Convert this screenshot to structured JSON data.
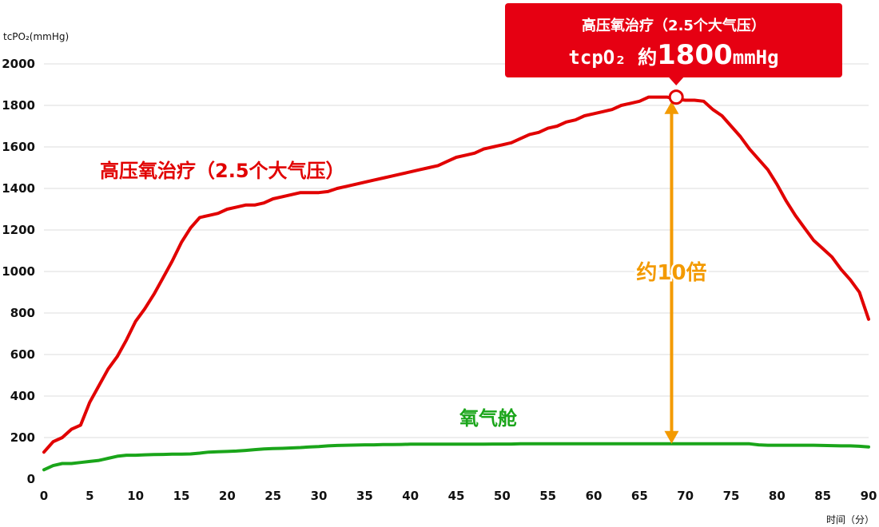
{
  "chart_data": {
    "type": "line",
    "ylabel": "tcPO₂(mmHg)",
    "xlabel": "时间（分）",
    "xlim": [
      0,
      90
    ],
    "ylim": [
      0,
      2000
    ],
    "x_ticks": [
      "0",
      "5",
      "10",
      "15",
      "20",
      "25",
      "30",
      "35",
      "40",
      "45",
      "50",
      "55",
      "60",
      "65",
      "70",
      "75",
      "80",
      "85",
      "90"
    ],
    "y_ticks": [
      "0",
      "200",
      "400",
      "600",
      "800",
      "1000",
      "1200",
      "1400",
      "1600",
      "1800",
      "2000"
    ],
    "grid": "horizontal",
    "series": [
      {
        "name": "高压氧治疗（2.5个大气压）",
        "color": "#e10000",
        "x": [
          0,
          1,
          2,
          3,
          4,
          5,
          6,
          7,
          8,
          9,
          10,
          11,
          12,
          13,
          14,
          15,
          16,
          17,
          18,
          19,
          20,
          21,
          22,
          23,
          24,
          25,
          26,
          27,
          28,
          29,
          30,
          31,
          32,
          33,
          34,
          35,
          36,
          37,
          38,
          39,
          40,
          41,
          42,
          43,
          44,
          45,
          46,
          47,
          48,
          49,
          50,
          51,
          52,
          53,
          54,
          55,
          56,
          57,
          58,
          59,
          60,
          61,
          62,
          63,
          64,
          65,
          66,
          67,
          68,
          69,
          70,
          71,
          72,
          73,
          74,
          75,
          76,
          77,
          78,
          79,
          80,
          81,
          82,
          83,
          84,
          85,
          86,
          87,
          88,
          89,
          90
        ],
        "values": [
          130,
          180,
          200,
          240,
          260,
          370,
          450,
          530,
          590,
          670,
          760,
          820,
          890,
          970,
          1050,
          1140,
          1210,
          1260,
          1270,
          1280,
          1300,
          1310,
          1320,
          1320,
          1330,
          1350,
          1360,
          1370,
          1380,
          1380,
          1380,
          1385,
          1400,
          1410,
          1420,
          1430,
          1440,
          1450,
          1460,
          1470,
          1480,
          1490,
          1500,
          1510,
          1530,
          1550,
          1560,
          1570,
          1590,
          1600,
          1610,
          1620,
          1640,
          1660,
          1670,
          1690,
          1700,
          1720,
          1730,
          1750,
          1760,
          1770,
          1780,
          1800,
          1810,
          1820,
          1840,
          1840,
          1840,
          1830,
          1825,
          1825,
          1820,
          1780,
          1750,
          1700,
          1650,
          1590,
          1540,
          1490,
          1420,
          1340,
          1270,
          1210,
          1150,
          1110,
          1070,
          1010,
          960,
          900,
          770
        ]
      },
      {
        "name": "氧气舱",
        "color": "#1aa51a",
        "x": [
          0,
          1,
          2,
          3,
          4,
          5,
          6,
          7,
          8,
          9,
          10,
          11,
          12,
          13,
          14,
          15,
          16,
          17,
          18,
          19,
          20,
          21,
          22,
          23,
          24,
          25,
          26,
          27,
          28,
          29,
          30,
          31,
          32,
          33,
          34,
          35,
          36,
          37,
          38,
          39,
          40,
          41,
          42,
          43,
          44,
          45,
          46,
          47,
          48,
          49,
          50,
          51,
          52,
          53,
          54,
          55,
          56,
          57,
          58,
          59,
          60,
          61,
          62,
          63,
          64,
          65,
          66,
          67,
          68,
          69,
          70,
          71,
          72,
          73,
          74,
          75,
          76,
          77,
          78,
          79,
          80,
          81,
          82,
          83,
          84,
          85,
          86,
          87,
          88,
          89,
          90
        ],
        "values": [
          45,
          65,
          75,
          75,
          80,
          85,
          90,
          100,
          110,
          115,
          115,
          117,
          118,
          119,
          120,
          120,
          121,
          125,
          130,
          132,
          133,
          135,
          138,
          142,
          145,
          147,
          148,
          150,
          152,
          155,
          157,
          160,
          162,
          163,
          164,
          165,
          165,
          166,
          166,
          167,
          168,
          168,
          168,
          168,
          168,
          168,
          168,
          168,
          168,
          169,
          169,
          169,
          170,
          170,
          170,
          170,
          170,
          170,
          170,
          170,
          170,
          170,
          170,
          170,
          170,
          170,
          170,
          170,
          170,
          170,
          170,
          170,
          170,
          170,
          170,
          170,
          170,
          170,
          165,
          163,
          163,
          163,
          163,
          163,
          163,
          162,
          161,
          160,
          160,
          158,
          155
        ]
      }
    ],
    "annotations": {
      "callout_title": "高压氧治疗（2.5个大气压）",
      "callout_value_prefix": "tcpO₂ 約",
      "callout_value": "1800",
      "callout_unit": "mmHg",
      "callout_x": 69,
      "callout_y": 1840,
      "ratio_label": "约10倍",
      "ratio_x": 68.5,
      "ratio_from": 170,
      "ratio_to": 1820
    }
  }
}
